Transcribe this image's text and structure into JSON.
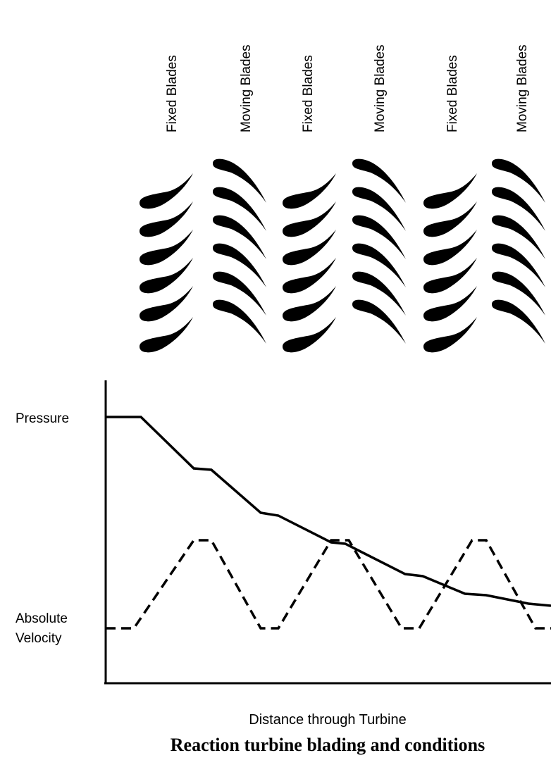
{
  "blade_labels": [
    "Fixed Blades",
    "Moving Blades",
    "Fixed Blades",
    "Moving Blades",
    "Fixed Blades",
    "Moving Blades"
  ],
  "curve_labels": {
    "pressure": "Pressure",
    "velocity": [
      "Absolute",
      "Velocity"
    ]
  },
  "x_axis_label": "Distance through Turbine",
  "caption": "Reaction turbine blading and conditions"
}
